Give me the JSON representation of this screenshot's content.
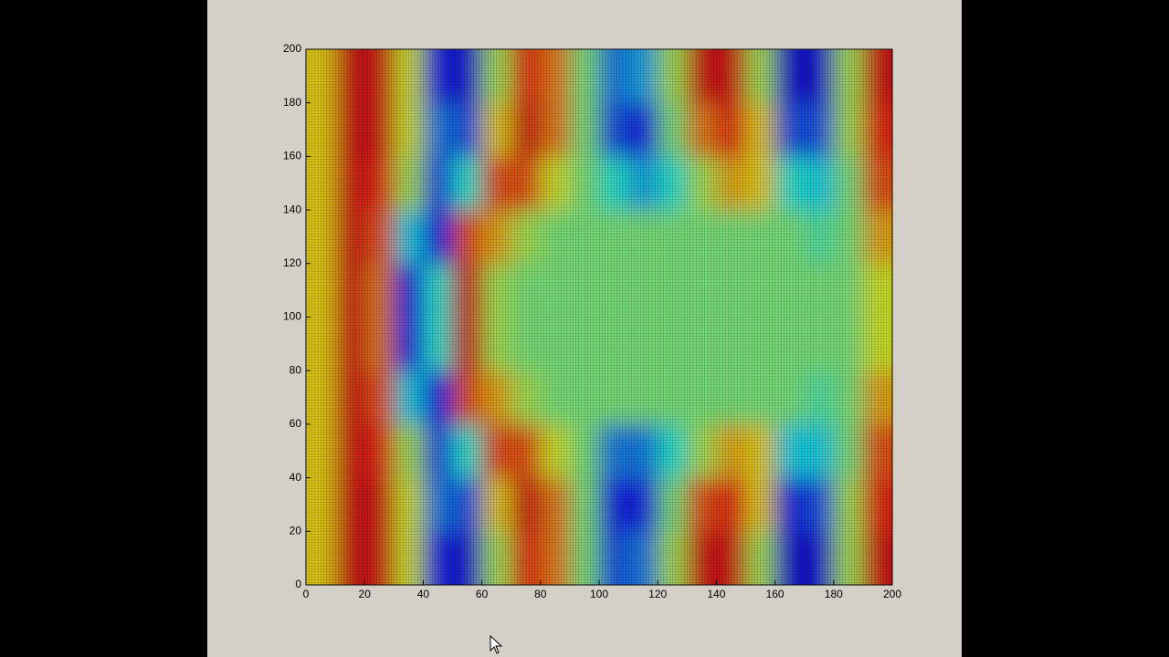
{
  "chart_data": {
    "type": "heatmap",
    "x": [
      5,
      15,
      25,
      35,
      45,
      55,
      65,
      75,
      85,
      95,
      105,
      115,
      125,
      135,
      145,
      155,
      165,
      175,
      185,
      195
    ],
    "y": [
      10,
      30,
      50,
      70,
      90,
      110,
      130,
      150,
      170,
      190
    ],
    "z": [
      [
        0.3,
        0.8,
        0.8,
        0.2,
        -0.7,
        -0.8,
        0.1,
        0.7,
        0.5,
        0,
        -0.6,
        -0.5,
        0.1,
        0.8,
        0.8,
        0.1,
        -0.8,
        -0.8,
        0.1,
        0.8
      ],
      [
        0.3,
        0.8,
        0.8,
        0.2,
        -0.5,
        -0.6,
        0.3,
        0.8,
        0.5,
        0,
        -0.7,
        -0.7,
        0,
        0.6,
        0.7,
        0.3,
        -0.7,
        -0.6,
        0.1,
        0.7
      ],
      [
        0.3,
        0.8,
        0.7,
        0.1,
        -0.6,
        -0.2,
        0.6,
        0.6,
        0.2,
        0,
        -0.5,
        -0.5,
        -0.2,
        0.1,
        0.4,
        0.3,
        -0.3,
        -0.3,
        0,
        0.6
      ],
      [
        0.3,
        0.8,
        0.6,
        -0.3,
        -0.7,
        0.6,
        0.4,
        0.1,
        0,
        0,
        0,
        0,
        0,
        0,
        0,
        0,
        0,
        -0.1,
        0,
        0.4
      ],
      [
        0.3,
        0.8,
        0.5,
        -0.7,
        -0.2,
        0.8,
        0.1,
        0,
        0,
        0,
        0,
        0,
        0,
        0,
        0,
        0,
        0,
        0,
        0,
        0.2
      ],
      [
        0.3,
        0.8,
        0.5,
        -0.7,
        -0.2,
        0.8,
        0.1,
        0,
        0,
        0,
        0,
        0,
        0,
        0,
        0,
        0,
        0,
        0,
        0,
        0.2
      ],
      [
        0.3,
        0.8,
        0.6,
        -0.3,
        -0.7,
        0.6,
        0.4,
        0.1,
        0,
        0,
        0,
        0,
        0,
        0,
        0,
        0,
        0,
        -0.1,
        0,
        0.4
      ],
      [
        0.3,
        0.8,
        0.7,
        0.1,
        -0.6,
        -0.2,
        0.6,
        0.6,
        0.2,
        0,
        -0.2,
        -0.4,
        -0.2,
        0.1,
        0.4,
        0.3,
        -0.2,
        -0.3,
        0,
        0.6
      ],
      [
        0.3,
        0.8,
        0.8,
        0.2,
        -0.5,
        -0.6,
        0.3,
        0.8,
        0.5,
        0,
        -0.6,
        -0.7,
        0,
        0.5,
        0.7,
        0.3,
        -0.6,
        -0.6,
        0.1,
        0.7
      ],
      [
        0.3,
        0.8,
        0.8,
        0.2,
        -0.7,
        -0.8,
        0.1,
        0.7,
        0.5,
        0,
        -0.5,
        -0.4,
        0.1,
        0.8,
        0.8,
        0.1,
        -0.8,
        -0.8,
        0.1,
        0.8
      ]
    ],
    "clim": [
      -1,
      1
    ],
    "colormap": "jet",
    "xlim": [
      0,
      200
    ],
    "ylim": [
      0,
      200
    ],
    "xticks": [
      0,
      20,
      40,
      60,
      80,
      100,
      120,
      140,
      160,
      180,
      200
    ],
    "yticks": [
      0,
      20,
      40,
      60,
      80,
      100,
      120,
      140,
      160,
      180,
      200
    ]
  }
}
